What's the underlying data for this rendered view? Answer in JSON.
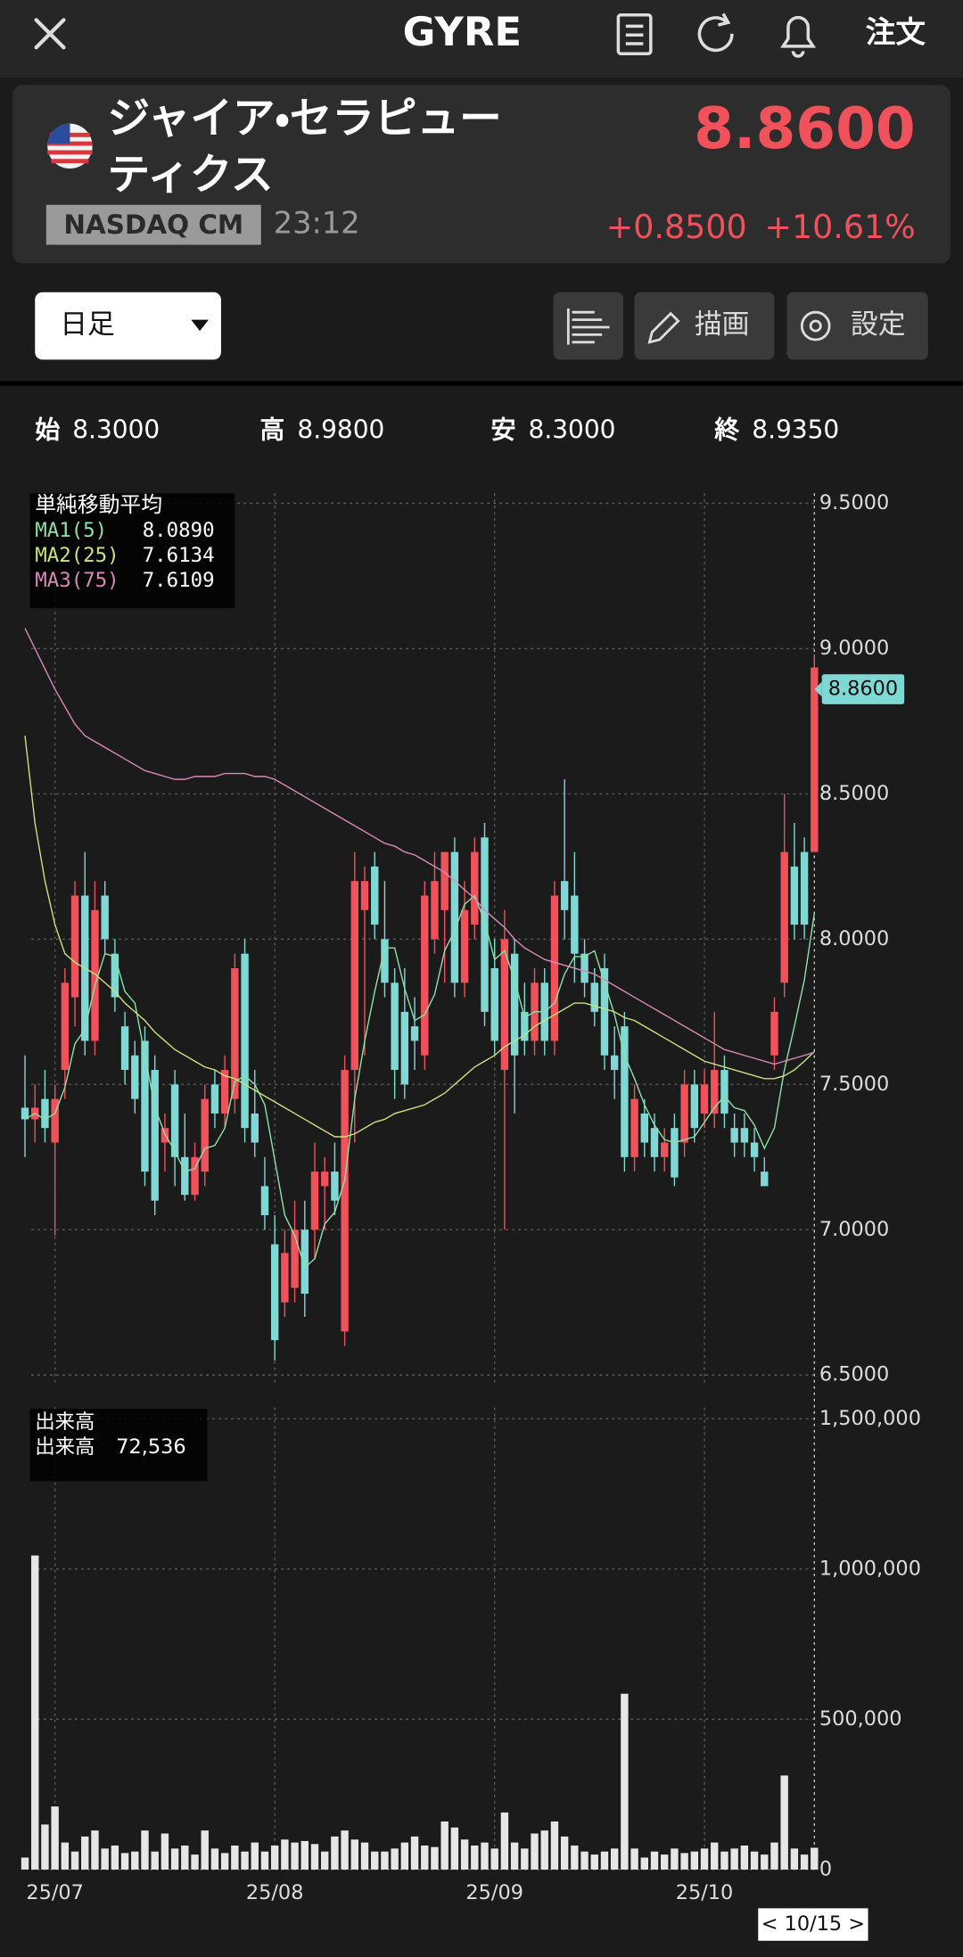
{
  "header": {
    "title": "GYRE",
    "order": "注文"
  },
  "quote": {
    "name": [
      "ジャイア・セラピュー",
      "ティクス"
    ],
    "exchange": "NASDAQ CM",
    "time": "23:12",
    "price": "8.8600",
    "change": "+0.8500",
    "change_pct": "+10.61%"
  },
  "toolbar": {
    "period": "日足",
    "draw": "描画",
    "settings": "設定"
  },
  "ohlc_summary": [
    {
      "label": "始",
      "value": "8.3000"
    },
    {
      "label": "高",
      "value": "8.9800"
    },
    {
      "label": "安",
      "value": "8.3000"
    },
    {
      "label": "終",
      "value": "8.9350"
    }
  ],
  "chart_data": {
    "type": "candlestick",
    "categories": [
      null,
      null,
      null,
      "25/07",
      null,
      null,
      null,
      null,
      null,
      null,
      null,
      null,
      null,
      null,
      null,
      null,
      null,
      null,
      null,
      null,
      null,
      null,
      null,
      null,
      null,
      "25/08",
      null,
      null,
      null,
      null,
      null,
      null,
      null,
      null,
      null,
      null,
      null,
      null,
      null,
      null,
      null,
      null,
      null,
      null,
      null,
      null,
      null,
      "25/09",
      null,
      null,
      null,
      null,
      null,
      null,
      null,
      null,
      null,
      null,
      null,
      null,
      null,
      null,
      null,
      null,
      null,
      null,
      null,
      null,
      "25/10",
      null,
      null,
      null,
      null,
      null,
      null,
      null,
      null,
      null,
      null,
      null
    ],
    "open": [
      7.42,
      7.38,
      7.45,
      7.3,
      7.55,
      7.8,
      8.15,
      7.65,
      8.15,
      7.95,
      7.7,
      7.6,
      7.65,
      7.55,
      7.3,
      7.5,
      7.25,
      7.12,
      7.2,
      7.5,
      7.4,
      7.45,
      7.95,
      7.4,
      7.15,
      6.95,
      6.75,
      6.8,
      7.0,
      7.0,
      7.15,
      7.2,
      6.65,
      7.55,
      8.1,
      8.25,
      8.0,
      7.85,
      7.75,
      7.7,
      7.6,
      8.0,
      8.1,
      8.3,
      7.85,
      8.05,
      8.35,
      7.9,
      7.55,
      7.95,
      7.75,
      7.65,
      7.85,
      7.65,
      8.2,
      8.15,
      7.95,
      7.85,
      7.9,
      7.6,
      7.7,
      7.25,
      7.4,
      7.35,
      7.25,
      7.35,
      7.3,
      7.5,
      7.4,
      7.4,
      7.55,
      7.35,
      7.35,
      7.3,
      7.2,
      7.6,
      7.85,
      8.25,
      8.3,
      8.3
    ],
    "high": [
      7.6,
      7.5,
      7.55,
      7.5,
      7.9,
      8.2,
      8.3,
      8.2,
      8.2,
      8.0,
      7.75,
      7.65,
      7.7,
      7.6,
      7.4,
      7.55,
      7.4,
      7.3,
      7.5,
      7.55,
      7.6,
      7.95,
      8.0,
      7.55,
      7.25,
      7.05,
      7.0,
      7.1,
      7.1,
      7.3,
      7.25,
      7.3,
      7.6,
      8.3,
      8.25,
      8.3,
      8.2,
      7.9,
      7.9,
      7.8,
      8.2,
      8.3,
      8.3,
      8.35,
      8.2,
      8.35,
      8.4,
      8.0,
      8.1,
      8.0,
      7.85,
      7.9,
      7.9,
      8.2,
      8.55,
      8.3,
      8.0,
      7.9,
      7.95,
      7.7,
      7.75,
      7.5,
      7.45,
      7.4,
      7.35,
      7.4,
      7.55,
      7.55,
      7.55,
      7.75,
      7.6,
      7.4,
      7.4,
      7.35,
      7.25,
      7.8,
      8.5,
      8.4,
      8.35,
      8.98
    ],
    "low": [
      7.25,
      7.3,
      7.3,
      6.98,
      7.45,
      7.7,
      7.6,
      7.6,
      7.95,
      7.75,
      7.5,
      7.4,
      7.15,
      7.05,
      7.2,
      7.15,
      7.1,
      7.1,
      7.15,
      7.35,
      7.35,
      7.4,
      7.3,
      7.25,
      7.0,
      6.55,
      6.7,
      6.75,
      6.7,
      6.9,
      7.0,
      7.05,
      6.6,
      7.3,
      7.6,
      8.0,
      7.8,
      7.45,
      7.45,
      7.55,
      7.55,
      7.95,
      7.85,
      7.8,
      7.8,
      8.0,
      7.7,
      7.6,
      7.0,
      7.4,
      7.6,
      7.6,
      7.6,
      7.6,
      8.0,
      7.85,
      7.8,
      7.7,
      7.55,
      7.45,
      7.2,
      7.2,
      7.25,
      7.2,
      7.2,
      7.15,
      7.25,
      7.3,
      7.35,
      7.35,
      7.35,
      7.25,
      7.25,
      7.2,
      7.15,
      7.55,
      7.8,
      8.0,
      8.0,
      8.3
    ],
    "close": [
      7.38,
      7.42,
      7.35,
      7.45,
      7.85,
      8.15,
      7.65,
      8.1,
      8.0,
      7.8,
      7.55,
      7.45,
      7.2,
      7.1,
      7.35,
      7.25,
      7.12,
      7.25,
      7.45,
      7.4,
      7.55,
      7.9,
      7.35,
      7.3,
      7.05,
      6.62,
      6.92,
      7.0,
      6.78,
      7.2,
      7.2,
      7.1,
      7.55,
      8.2,
      8.2,
      8.05,
      7.85,
      7.55,
      7.5,
      7.65,
      8.15,
      8.2,
      8.3,
      7.85,
      8.1,
      8.3,
      7.75,
      7.65,
      8.0,
      7.6,
      7.65,
      7.85,
      7.65,
      8.15,
      8.1,
      7.95,
      7.85,
      7.75,
      7.6,
      7.55,
      7.25,
      7.45,
      7.3,
      7.25,
      7.3,
      7.18,
      7.5,
      7.35,
      7.5,
      7.55,
      7.4,
      7.3,
      7.3,
      7.25,
      7.15,
      7.75,
      8.3,
      8.05,
      8.05,
      8.935
    ],
    "up_color": "#f0515a",
    "down_color": "#7fd8d4",
    "ylim": [
      6.5,
      9.5
    ],
    "yticks": [
      {
        "value": 9.5,
        "label": "9.5000"
      },
      {
        "value": 9.0,
        "label": "9.0000"
      },
      {
        "value": 8.5,
        "label": "8.5000"
      },
      {
        "value": 8.0,
        "label": "8.0000"
      },
      {
        "value": 7.5,
        "label": "7.5000"
      },
      {
        "value": 7.0,
        "label": "7.0000"
      },
      {
        "value": 6.5,
        "label": "6.5000"
      }
    ],
    "grid": true,
    "last_price": 8.86,
    "last_price_label": "8.8600",
    "cursor_label": "< 10/15 >",
    "ma_title": "単純移動平均",
    "ma": [
      {
        "name": "MA1(5)",
        "color": "#8fe0a8",
        "value_label": "8.0890",
        "values": [
          7.38,
          7.4,
          7.38,
          7.4,
          7.49,
          7.64,
          7.69,
          7.84,
          7.95,
          7.94,
          7.82,
          7.78,
          7.6,
          7.42,
          7.33,
          7.27,
          7.2,
          7.21,
          7.28,
          7.29,
          7.35,
          7.51,
          7.53,
          7.5,
          7.43,
          7.24,
          7.05,
          6.98,
          6.87,
          6.9,
          7.02,
          7.06,
          7.17,
          7.45,
          7.65,
          7.82,
          7.97,
          7.97,
          7.83,
          7.72,
          7.74,
          7.81,
          7.96,
          8.03,
          8.12,
          8.15,
          8.06,
          7.93,
          7.96,
          7.86,
          7.73,
          7.75,
          7.75,
          7.78,
          7.88,
          7.94,
          7.94,
          7.96,
          7.85,
          7.74,
          7.6,
          7.52,
          7.43,
          7.36,
          7.31,
          7.3,
          7.31,
          7.32,
          7.37,
          7.42,
          7.46,
          7.42,
          7.41,
          7.36,
          7.28,
          7.35,
          7.55,
          7.7,
          7.86,
          8.089
        ]
      },
      {
        "name": "MA2(25)",
        "color": "#c9e27c",
        "value_label": "7.6134",
        "values": [
          8.7,
          8.4,
          8.2,
          8.05,
          7.95,
          7.92,
          7.9,
          7.88,
          7.85,
          7.82,
          7.78,
          7.75,
          7.72,
          7.68,
          7.65,
          7.62,
          7.6,
          7.58,
          7.56,
          7.55,
          7.53,
          7.52,
          7.5,
          7.48,
          7.46,
          7.44,
          7.42,
          7.4,
          7.38,
          7.36,
          7.34,
          7.32,
          7.32,
          7.33,
          7.35,
          7.37,
          7.38,
          7.4,
          7.41,
          7.42,
          7.43,
          7.45,
          7.47,
          7.5,
          7.53,
          7.56,
          7.58,
          7.6,
          7.63,
          7.65,
          7.67,
          7.7,
          7.72,
          7.74,
          7.76,
          7.78,
          7.78,
          7.77,
          7.76,
          7.75,
          7.73,
          7.72,
          7.7,
          7.68,
          7.66,
          7.64,
          7.62,
          7.6,
          7.58,
          7.57,
          7.56,
          7.55,
          7.54,
          7.53,
          7.52,
          7.52,
          7.53,
          7.55,
          7.58,
          7.6134
        ]
      },
      {
        "name": "MA3(75)",
        "color": "#d88ab8",
        "value_label": "7.6109",
        "values": [
          9.07,
          9.0,
          8.93,
          8.86,
          8.8,
          8.74,
          8.7,
          8.68,
          8.66,
          8.64,
          8.62,
          8.6,
          8.58,
          8.57,
          8.56,
          8.55,
          8.55,
          8.56,
          8.56,
          8.56,
          8.57,
          8.57,
          8.57,
          8.56,
          8.56,
          8.55,
          8.53,
          8.51,
          8.49,
          8.47,
          8.45,
          8.43,
          8.41,
          8.39,
          8.37,
          8.35,
          8.33,
          8.32,
          8.3,
          8.29,
          8.27,
          8.25,
          8.23,
          8.2,
          8.17,
          8.14,
          8.1,
          8.07,
          8.04,
          8.0,
          7.97,
          7.95,
          7.93,
          7.92,
          7.91,
          7.9,
          7.89,
          7.88,
          7.86,
          7.84,
          7.82,
          7.8,
          7.78,
          7.76,
          7.74,
          7.72,
          7.7,
          7.68,
          7.66,
          7.64,
          7.62,
          7.61,
          7.6,
          7.59,
          7.58,
          7.57,
          7.58,
          7.59,
          7.6,
          7.6109
        ]
      }
    ],
    "volume": {
      "title": "出来高",
      "name": "出来高",
      "value_label": "72,536",
      "color": "#e6e6e6",
      "values": [
        40000,
        1045000,
        150000,
        210000,
        90000,
        60000,
        110000,
        130000,
        70000,
        80000,
        55000,
        60000,
        130000,
        60000,
        120000,
        70000,
        80000,
        50000,
        130000,
        70000,
        55000,
        80000,
        60000,
        90000,
        60000,
        80000,
        100000,
        90000,
        95000,
        85000,
        60000,
        110000,
        130000,
        100000,
        90000,
        60000,
        60000,
        70000,
        90000,
        110000,
        80000,
        75000,
        160000,
        140000,
        100000,
        80000,
        90000,
        70000,
        190000,
        90000,
        70000,
        120000,
        130000,
        160000,
        110000,
        80000,
        60000,
        50000,
        60000,
        70000,
        585000,
        70000,
        40000,
        60000,
        50000,
        70000,
        55000,
        60000,
        70000,
        90000,
        60000,
        70000,
        80000,
        60000,
        50000,
        90000,
        313000,
        70000,
        50000,
        72536
      ],
      "ylim": [
        0,
        1500000
      ],
      "yticks": [
        {
          "value": 1500000,
          "label": "1,500,000"
        },
        {
          "value": 1000000,
          "label": "1,000,000"
        },
        {
          "value": 500000,
          "label": "500,000"
        },
        0
      ]
    }
  }
}
